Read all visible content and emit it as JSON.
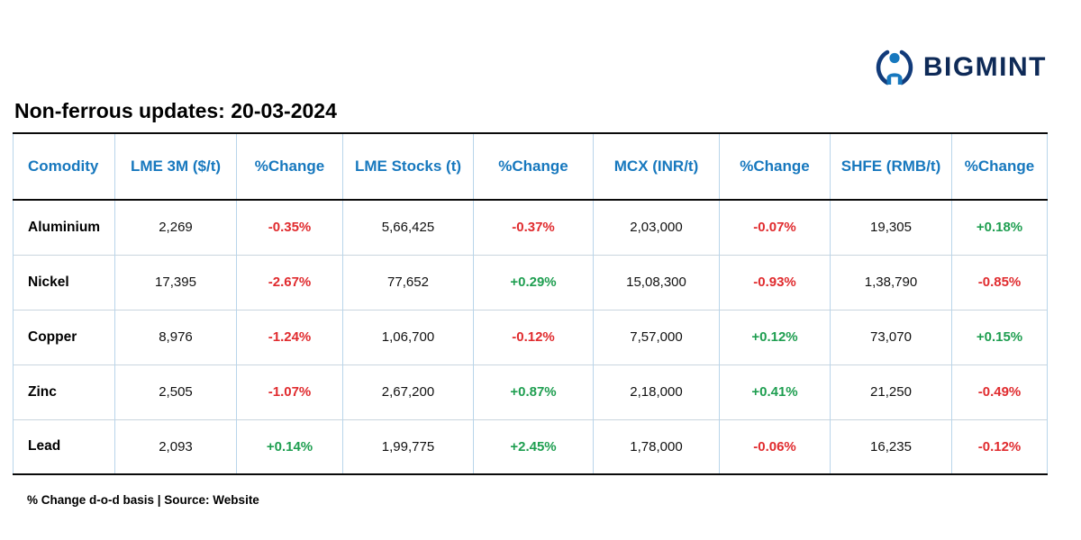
{
  "logo": {
    "brand": "BIGMINT"
  },
  "page": {
    "title": "Non-ferrous updates: 20-03-2024",
    "footnote": "% Change d-o-d basis | Source: Website"
  },
  "colors": {
    "header_blue": "#1778be",
    "negative_red": "#e02b2e",
    "positive_green": "#1e9e50",
    "brand_navy": "#0e2a57"
  },
  "table": {
    "columns": [
      "Comodity",
      "LME 3M ($/t)",
      "%Change",
      "LME Stocks (t)",
      "%Change",
      "MCX (INR/t)",
      "%Change",
      "SHFE (RMB/t)",
      "%Change"
    ],
    "rows": [
      [
        "Aluminium",
        "2,269",
        "-0.35%",
        "5,66,425",
        "-0.37%",
        "2,03,000",
        "-0.07%",
        "19,305",
        "+0.18%"
      ],
      [
        "Nickel",
        "17,395",
        "-2.67%",
        "77,652",
        "+0.29%",
        "15,08,300",
        "-0.93%",
        "1,38,790",
        "-0.85%"
      ],
      [
        "Copper",
        "8,976",
        "-1.24%",
        "1,06,700",
        "-0.12%",
        "7,57,000",
        "+0.12%",
        "73,070",
        "+0.15%"
      ],
      [
        "Zinc",
        "2,505",
        "-1.07%",
        "2,67,200",
        "+0.87%",
        "2,18,000",
        "+0.41%",
        "21,250",
        "-0.49%"
      ],
      [
        "Lead",
        "2,093",
        "+0.14%",
        "1,99,775",
        "+2.45%",
        "1,78,000",
        "-0.06%",
        "16,235",
        "-0.12%"
      ]
    ]
  }
}
